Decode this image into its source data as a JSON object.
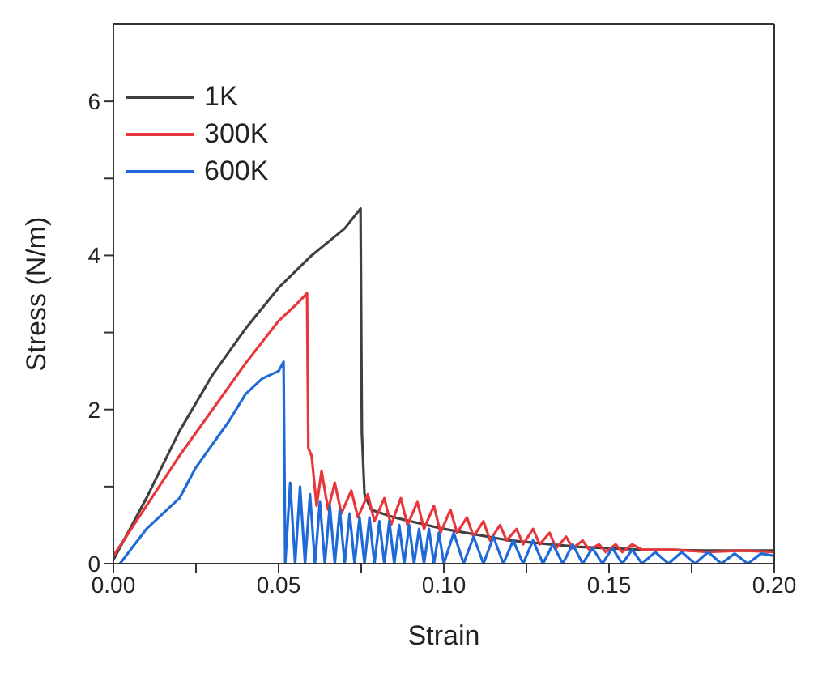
{
  "chart_data": {
    "type": "line",
    "xlabel": "Strain",
    "ylabel": "Stress (N/m)",
    "xlim": [
      0,
      0.2
    ],
    "ylim": [
      0,
      7
    ],
    "xticks": [
      {
        "value": 0,
        "label": "0.00"
      },
      {
        "value": 0.025,
        "label": null
      },
      {
        "value": 0.05,
        "label": "0.05"
      },
      {
        "value": 0.075,
        "label": null
      },
      {
        "value": 0.1,
        "label": "0.10"
      },
      {
        "value": 0.125,
        "label": null
      },
      {
        "value": 0.15,
        "label": "0.15"
      },
      {
        "value": 0.175,
        "label": null
      },
      {
        "value": 0.2,
        "label": "0.20"
      }
    ],
    "yticks": [
      0,
      {
        "value": 1,
        "label": null
      },
      2,
      {
        "value": 3,
        "label": null
      },
      4,
      {
        "value": 5,
        "label": null
      },
      6
    ],
    "grid": false,
    "legend": "top left",
    "marker": "none",
    "line_style": "solid",
    "series": [
      {
        "name": "1K",
        "color": "#404040",
        "x": [
          0,
          0.005,
          0.01,
          0.02,
          0.03,
          0.04,
          0.05,
          0.06,
          0.07,
          0.0748,
          0.0752,
          0.076,
          0.078,
          0.085,
          0.1,
          0.12,
          0.14,
          0.16,
          0.18,
          0.2
        ],
        "values": [
          0.05,
          0.45,
          0.85,
          1.72,
          2.45,
          3.05,
          3.58,
          4.0,
          4.35,
          4.61,
          1.7,
          0.9,
          0.7,
          0.6,
          0.45,
          0.3,
          0.22,
          0.18,
          0.17,
          0.17
        ]
      },
      {
        "name": "300K",
        "color": "#e8363a",
        "x": [
          0,
          0.01,
          0.02,
          0.03,
          0.04,
          0.05,
          0.055,
          0.0586,
          0.059,
          0.06,
          0.0615,
          0.063,
          0.065,
          0.067,
          0.069,
          0.072,
          0.074,
          0.077,
          0.079,
          0.082,
          0.084,
          0.087,
          0.089,
          0.092,
          0.094,
          0.097,
          0.099,
          0.102,
          0.104,
          0.107,
          0.109,
          0.112,
          0.114,
          0.117,
          0.119,
          0.122,
          0.124,
          0.127,
          0.129,
          0.132,
          0.134,
          0.137,
          0.139,
          0.142,
          0.144,
          0.147,
          0.149,
          0.152,
          0.154,
          0.157,
          0.16,
          0.17,
          0.18,
          0.19,
          0.2
        ],
        "values": [
          0.1,
          0.75,
          1.4,
          2.0,
          2.6,
          3.15,
          3.35,
          3.51,
          1.5,
          1.4,
          0.75,
          1.2,
          0.7,
          1.05,
          0.65,
          0.95,
          0.6,
          0.9,
          0.55,
          0.85,
          0.5,
          0.85,
          0.5,
          0.8,
          0.45,
          0.75,
          0.4,
          0.7,
          0.4,
          0.6,
          0.35,
          0.55,
          0.3,
          0.5,
          0.3,
          0.45,
          0.25,
          0.45,
          0.25,
          0.4,
          0.2,
          0.35,
          0.2,
          0.3,
          0.18,
          0.25,
          0.15,
          0.25,
          0.15,
          0.25,
          0.18,
          0.18,
          0.15,
          0.17,
          0.15
        ]
      },
      {
        "name": "600K",
        "color": "#1f6ad8",
        "x": [
          0.002,
          0.01,
          0.02,
          0.025,
          0.03,
          0.035,
          0.04,
          0.045,
          0.05,
          0.0515,
          0.0518,
          0.052,
          0.0535,
          0.055,
          0.0565,
          0.058,
          0.0595,
          0.061,
          0.0625,
          0.064,
          0.0655,
          0.067,
          0.0685,
          0.07,
          0.0715,
          0.073,
          0.0745,
          0.076,
          0.0775,
          0.079,
          0.0805,
          0.082,
          0.0835,
          0.085,
          0.0865,
          0.088,
          0.0895,
          0.091,
          0.0925,
          0.094,
          0.0955,
          0.097,
          0.0985,
          0.1,
          0.103,
          0.106,
          0.109,
          0.112,
          0.115,
          0.118,
          0.121,
          0.124,
          0.127,
          0.13,
          0.133,
          0.136,
          0.139,
          0.142,
          0.145,
          0.148,
          0.151,
          0.154,
          0.157,
          0.16,
          0.164,
          0.168,
          0.172,
          0.176,
          0.18,
          0.184,
          0.188,
          0.192,
          0.196,
          0.2
        ],
        "values": [
          0,
          0.45,
          0.85,
          1.25,
          1.55,
          1.85,
          2.2,
          2.4,
          2.5,
          2.62,
          1.1,
          0,
          1.05,
          0,
          1.0,
          0,
          0.9,
          0,
          0.8,
          0,
          0.75,
          0,
          0.7,
          0,
          0.65,
          0,
          0.6,
          0,
          0.6,
          0,
          0.55,
          0,
          0.55,
          0,
          0.5,
          0,
          0.5,
          0,
          0.45,
          0,
          0.45,
          0,
          0.4,
          0,
          0.4,
          0,
          0.35,
          0,
          0.35,
          0,
          0.3,
          0,
          0.3,
          0,
          0.25,
          0,
          0.25,
          0,
          0.2,
          0,
          0.2,
          0,
          0.18,
          0,
          0.15,
          0,
          0.15,
          0,
          0.15,
          0,
          0.13,
          0,
          0.13,
          0.1
        ]
      }
    ]
  }
}
